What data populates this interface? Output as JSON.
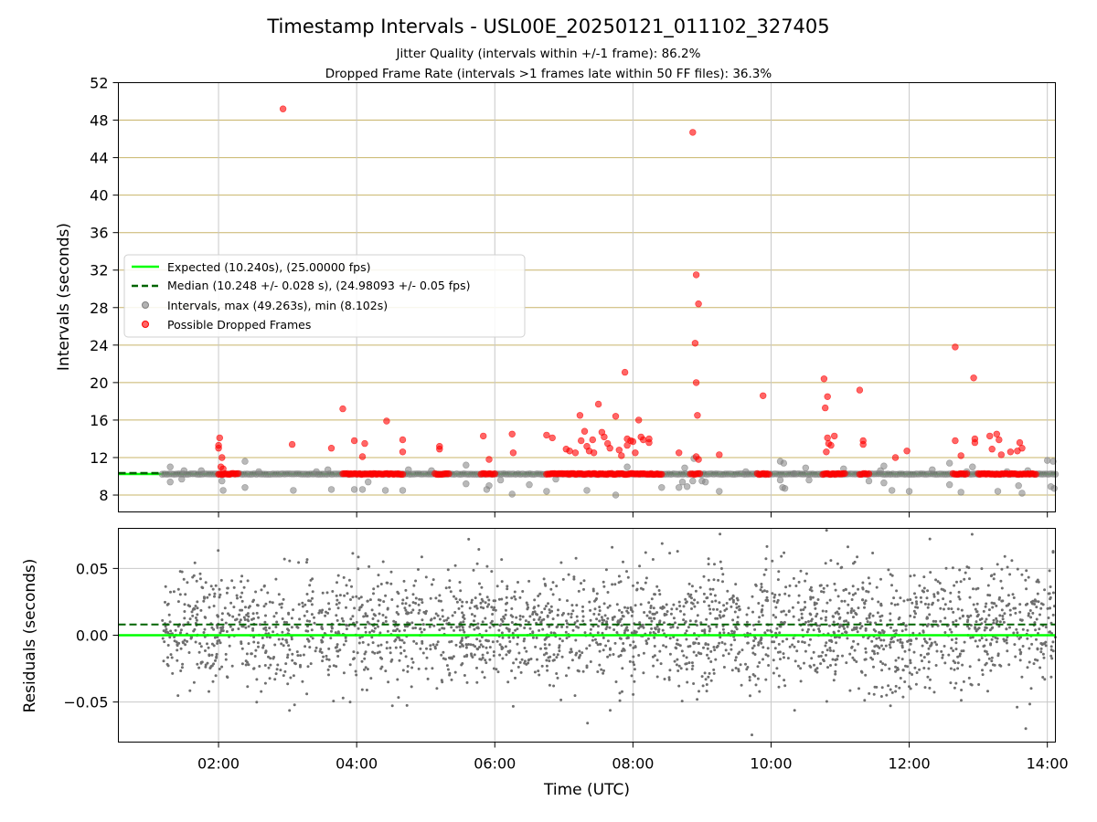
{
  "figure": {
    "title": "Timestamp Intervals - USL00E_20250121_011102_327405",
    "subtitle_1": "Jitter Quality (intervals within +/-1 frame): 86.2%",
    "subtitle_2": "Dropped Frame Rate (intervals >1 frames late within 50 FF files): 36.3%"
  },
  "colors": {
    "expected": "#00ff00",
    "median": "#006400",
    "intervals": "#808080",
    "dropped": "#ff0000",
    "hgrid_top": "#c8b46a",
    "grid": "#c8c8c8"
  },
  "chart_data": [
    {
      "type": "scatter",
      "panel": "intervals",
      "ylabel": "Intervals (seconds)",
      "xlim": [
        "00:33",
        "14:07"
      ],
      "ylim": [
        6.2,
        52
      ],
      "y_ticks": [
        "8",
        "12",
        "16",
        "20",
        "24",
        "28",
        "32",
        "36",
        "40",
        "44",
        "48",
        "52"
      ],
      "grid": "horizontal lines every 4 s (tan), vertical lines every 2 h (gray)",
      "legend": {
        "placement": "center-left",
        "entries": [
          "Expected (10.240s), (25.00000 fps)",
          "Median (10.248 +/- 0.028 s), (24.98093 +/- 0.05 fps)",
          "Intervals, max (49.263s), min (8.102s)",
          "Possible Dropped Frames"
        ]
      },
      "reference_lines": {
        "expected": 10.24,
        "median": 10.248
      },
      "series": [
        {
          "name": "Possible Dropped Frames",
          "points": [
            [
              "02:00",
              13.0
            ],
            [
              "02:00",
              13.3
            ],
            [
              "02:01",
              14.1
            ],
            [
              "02:02",
              11.0
            ],
            [
              "02:03",
              12.0
            ],
            [
              "02:04",
              10.8
            ],
            [
              "02:56",
              49.2
            ],
            [
              "03:04",
              13.4
            ],
            [
              "03:38",
              13.0
            ],
            [
              "03:48",
              17.2
            ],
            [
              "03:58",
              13.8
            ],
            [
              "04:05",
              12.1
            ],
            [
              "04:07",
              13.5
            ],
            [
              "04:26",
              15.9
            ],
            [
              "04:40",
              13.9
            ],
            [
              "04:40",
              12.6
            ],
            [
              "05:12",
              13.2
            ],
            [
              "05:12",
              12.9
            ],
            [
              "05:50",
              14.3
            ],
            [
              "05:55",
              11.8
            ],
            [
              "06:15",
              14.5
            ],
            [
              "06:16",
              12.5
            ],
            [
              "06:45",
              14.4
            ],
            [
              "06:50",
              14.1
            ],
            [
              "07:02",
              12.9
            ],
            [
              "07:05",
              12.7
            ],
            [
              "07:10",
              12.5
            ],
            [
              "07:14",
              16.5
            ],
            [
              "07:15",
              13.8
            ],
            [
              "07:18",
              14.8
            ],
            [
              "07:20",
              13.2
            ],
            [
              "07:22",
              12.7
            ],
            [
              "07:25",
              13.9
            ],
            [
              "07:26",
              12.5
            ],
            [
              "07:30",
              17.7
            ],
            [
              "07:33",
              14.7
            ],
            [
              "07:35",
              14.2
            ],
            [
              "07:38",
              13.5
            ],
            [
              "07:40",
              13.0
            ],
            [
              "07:45",
              16.4
            ],
            [
              "07:48",
              12.8
            ],
            [
              "07:50",
              12.2
            ],
            [
              "07:53",
              21.1
            ],
            [
              "07:55",
              13.3
            ],
            [
              "07:55",
              14.0
            ],
            [
              "07:58",
              13.8
            ],
            [
              "08:00",
              13.7
            ],
            [
              "08:02",
              12.5
            ],
            [
              "08:05",
              16.0
            ],
            [
              "08:07",
              14.2
            ],
            [
              "08:09",
              13.9
            ],
            [
              "08:14",
              14.0
            ],
            [
              "08:14",
              13.6
            ],
            [
              "08:40",
              12.5
            ],
            [
              "08:52",
              46.7
            ],
            [
              "08:55",
              31.5
            ],
            [
              "08:57",
              28.4
            ],
            [
              "08:54",
              24.2
            ],
            [
              "08:55",
              20.0
            ],
            [
              "08:56",
              16.5
            ],
            [
              "08:55",
              12.1
            ],
            [
              "08:57",
              11.8
            ],
            [
              "09:15",
              12.3
            ],
            [
              "09:53",
              18.6
            ],
            [
              "10:46",
              20.4
            ],
            [
              "10:47",
              17.3
            ],
            [
              "10:48",
              12.6
            ],
            [
              "10:49",
              14.1
            ],
            [
              "10:50",
              13.5
            ],
            [
              "10:52",
              13.3
            ],
            [
              "10:55",
              14.3
            ],
            [
              "10:49",
              18.5
            ],
            [
              "11:17",
              19.2
            ],
            [
              "11:20",
              13.8
            ],
            [
              "11:20",
              13.4
            ],
            [
              "11:48",
              12.0
            ],
            [
              "11:58",
              12.7
            ],
            [
              "12:40",
              23.8
            ],
            [
              "12:40",
              13.8
            ],
            [
              "12:45",
              12.2
            ],
            [
              "12:56",
              20.5
            ],
            [
              "12:57",
              14.0
            ],
            [
              "12:57",
              13.6
            ],
            [
              "13:10",
              14.3
            ],
            [
              "13:12",
              12.9
            ],
            [
              "13:16",
              14.5
            ],
            [
              "13:18",
              13.9
            ],
            [
              "13:20",
              12.3
            ],
            [
              "13:28",
              12.6
            ],
            [
              "13:34",
              12.7
            ],
            [
              "13:36",
              13.6
            ],
            [
              "13:38",
              13.0
            ]
          ],
          "clusters": [
            {
              "from": "02:00",
              "to": "02:17",
              "value": 10.25
            },
            {
              "from": "03:48",
              "to": "04:40",
              "value": 10.25
            },
            {
              "from": "05:08",
              "to": "05:20",
              "value": 10.25
            },
            {
              "from": "05:48",
              "to": "06:00",
              "value": 10.25
            },
            {
              "from": "06:45",
              "to": "08:25",
              "value": 10.25
            },
            {
              "from": "08:50",
              "to": "08:58",
              "value": 10.25
            },
            {
              "from": "09:48",
              "to": "09:58",
              "value": 10.25
            },
            {
              "from": "10:45",
              "to": "11:04",
              "value": 10.25
            },
            {
              "from": "11:17",
              "to": "11:25",
              "value": 10.25
            },
            {
              "from": "12:38",
              "to": "12:50",
              "value": 10.25
            },
            {
              "from": "13:00",
              "to": "13:50",
              "value": 10.25
            }
          ]
        },
        {
          "name": "Intervals, max (49.263s), min (8.102s)",
          "range": [
            "01:11",
            "14:07"
          ],
          "typical_value": 10.24,
          "outlier_points": [
            [
              "01:18",
              11.0
            ],
            [
              "01:18",
              9.4
            ],
            [
              "01:28",
              9.7
            ],
            [
              "01:30",
              10.6
            ],
            [
              "01:45",
              10.6
            ],
            [
              "02:03",
              9.5
            ],
            [
              "02:04",
              8.5
            ],
            [
              "02:23",
              8.8
            ],
            [
              "02:23",
              11.6
            ],
            [
              "02:35",
              10.5
            ],
            [
              "03:05",
              8.5
            ],
            [
              "03:25",
              10.5
            ],
            [
              "03:35",
              10.7
            ],
            [
              "03:38",
              8.6
            ],
            [
              "03:58",
              8.6
            ],
            [
              "04:05",
              8.6
            ],
            [
              "04:10",
              9.4
            ],
            [
              "04:25",
              8.5
            ],
            [
              "04:40",
              8.5
            ],
            [
              "04:45",
              10.7
            ],
            [
              "05:05",
              10.6
            ],
            [
              "05:35",
              11.2
            ],
            [
              "05:35",
              9.2
            ],
            [
              "05:53",
              8.6
            ],
            [
              "05:55",
              9.0
            ],
            [
              "06:05",
              9.6
            ],
            [
              "06:15",
              8.1
            ],
            [
              "06:30",
              9.1
            ],
            [
              "06:45",
              8.4
            ],
            [
              "06:53",
              9.7
            ],
            [
              "07:20",
              8.5
            ],
            [
              "07:45",
              8.0
            ],
            [
              "07:55",
              11.0
            ],
            [
              "08:25",
              8.8
            ],
            [
              "08:40",
              8.8
            ],
            [
              "08:43",
              9.4
            ],
            [
              "08:45",
              10.9
            ],
            [
              "08:47",
              8.9
            ],
            [
              "08:52",
              9.5
            ],
            [
              "08:53",
              11.9
            ],
            [
              "09:00",
              9.5
            ],
            [
              "09:03",
              9.4
            ],
            [
              "09:15",
              8.4
            ],
            [
              "09:38",
              10.5
            ],
            [
              "10:08",
              11.6
            ],
            [
              "10:08",
              9.6
            ],
            [
              "10:10",
              8.8
            ],
            [
              "10:11",
              11.4
            ],
            [
              "10:12",
              8.7
            ],
            [
              "10:20",
              10.3
            ],
            [
              "10:30",
              10.9
            ],
            [
              "10:33",
              9.6
            ],
            [
              "11:03",
              10.8
            ],
            [
              "11:25",
              9.5
            ],
            [
              "11:35",
              10.6
            ],
            [
              "11:38",
              11.1
            ],
            [
              "11:38",
              9.3
            ],
            [
              "11:45",
              8.5
            ],
            [
              "12:00",
              8.4
            ],
            [
              "12:20",
              10.7
            ],
            [
              "12:35",
              11.4
            ],
            [
              "12:35",
              9.1
            ],
            [
              "12:45",
              8.3
            ],
            [
              "12:50",
              10.5
            ],
            [
              "12:55",
              11.0
            ],
            [
              "13:17",
              8.4
            ],
            [
              "13:25",
              10.5
            ],
            [
              "13:35",
              9.0
            ],
            [
              "13:38",
              8.2
            ],
            [
              "13:43",
              10.6
            ],
            [
              "14:00",
              11.7
            ],
            [
              "14:03",
              8.9
            ],
            [
              "14:05",
              11.6
            ],
            [
              "14:06",
              8.7
            ]
          ]
        }
      ]
    },
    {
      "type": "scatter",
      "panel": "residuals",
      "xlabel": "Time (UTC)",
      "ylabel": "Residuals (seconds)",
      "xlim": [
        "00:33",
        "14:07"
      ],
      "ylim": [
        -0.08,
        0.08
      ],
      "x_ticks": [
        "02:00",
        "04:00",
        "06:00",
        "08:00",
        "10:00",
        "12:00",
        "14:00"
      ],
      "y_ticks": [
        "0.05",
        "0.00",
        "−0.05"
      ],
      "grid": true,
      "reference_lines": {
        "expected": 0.0,
        "median": 0.008
      },
      "series": [
        {
          "name": "Residuals",
          "range": [
            "01:11",
            "14:07"
          ],
          "center": 0.005,
          "spread_sd": 0.022,
          "min": -0.076,
          "max": 0.079
        }
      ]
    }
  ]
}
